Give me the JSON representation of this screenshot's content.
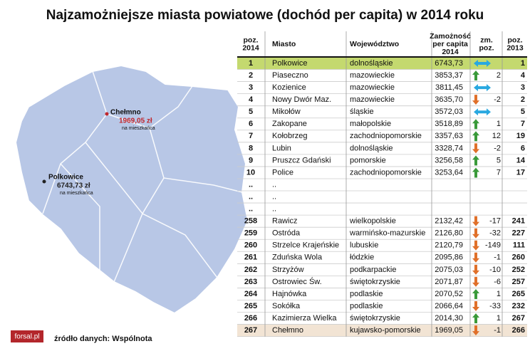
{
  "title": "Najzamożniejsze miasta powiatowe (dochód per capita) w 2014 roku",
  "map": {
    "labels": [
      {
        "name": "Chełmno",
        "amount": "1969,05 zł",
        "note": "na mieszkańca",
        "color": "#c0272d"
      },
      {
        "name": "Polkowice",
        "amount": "6743,73 zł",
        "note": "na mieszkańca",
        "color": "#222222"
      }
    ]
  },
  "table": {
    "header": [
      [
        "poz.",
        "2014"
      ],
      [
        "Miasto"
      ],
      [
        "Województwo"
      ],
      [
        "Zamożność",
        "per capita",
        "2014"
      ],
      [
        "zm.",
        "poz."
      ],
      [
        "poz.",
        "2013"
      ]
    ],
    "highlight_rows": [
      {
        "row": 0,
        "color": "#c4d96f"
      },
      {
        "row": 22,
        "color": "#f2e4d4"
      }
    ],
    "arrow_colors": {
      "up": "#3a9a3a",
      "down": "#e0702a",
      "same": "#29a8e0"
    },
    "rows": [
      [
        1,
        "Polkowice",
        "dolnośląskie",
        "6743,73",
        null,
        1
      ],
      [
        2,
        "Piaseczno",
        "mazowieckie",
        "3853,37",
        2,
        4
      ],
      [
        3,
        "Kozienice",
        "mazowieckie",
        "3811,45",
        null,
        3
      ],
      [
        4,
        "Nowy Dwór Maz.",
        "mazowieckie",
        "3635,70",
        -2,
        2
      ],
      [
        5,
        "Mikołów",
        "śląskie",
        "3572,03",
        null,
        5
      ],
      [
        6,
        "Zakopane",
        "małopolskie",
        "3518,89",
        1,
        7
      ],
      [
        7,
        "Kołobrzeg",
        "zachodniopomorskie",
        "3357,63",
        12,
        19
      ],
      [
        8,
        "Lubin",
        "dolnośląskie",
        "3328,74",
        -2,
        6
      ],
      [
        9,
        "Pruszcz Gdański",
        "pomorskie",
        "3256,58",
        5,
        14
      ],
      [
        10,
        "Police",
        "zachodniopomorskie",
        "3253,64",
        7,
        17
      ],
      [
        "..",
        "..",
        null,
        null,
        null,
        null
      ],
      [
        "..",
        "..",
        null,
        null,
        null,
        null
      ],
      [
        "..",
        "..",
        null,
        null,
        null,
        null
      ],
      [
        258,
        "Rawicz",
        "wielkopolskie",
        "2132,42",
        -17,
        241
      ],
      [
        259,
        "Ostróda",
        "warmińsko-mazurskie",
        "2126,80",
        -32,
        227
      ],
      [
        260,
        "Strzelce Krajeńskie",
        "lubuskie",
        "2120,79",
        -149,
        111
      ],
      [
        261,
        "Zduńska Wola",
        "łódzkie",
        "2095,86",
        -1,
        260
      ],
      [
        262,
        "Strzyżów",
        "podkarpackie",
        "2075,03",
        -10,
        252
      ],
      [
        263,
        "Ostrowiec Św.",
        "świętokrzyskie",
        "2071,87",
        -6,
        257
      ],
      [
        264,
        "Hajnówka",
        "podlaskie",
        "2070,52",
        1,
        265
      ],
      [
        265,
        "Sokółka",
        "podlaskie",
        "2066,64",
        -33,
        232
      ],
      [
        266,
        "Kazimierza Wielka",
        "świętokrzyskie",
        "2014,30",
        1,
        267
      ],
      [
        267,
        "Chełmno",
        "kujawsko-pomorskie",
        "1969,05",
        -1,
        266
      ]
    ]
  },
  "footer": {
    "logo": "forsal.pl",
    "source": "źródło danych: Wspólnota"
  }
}
